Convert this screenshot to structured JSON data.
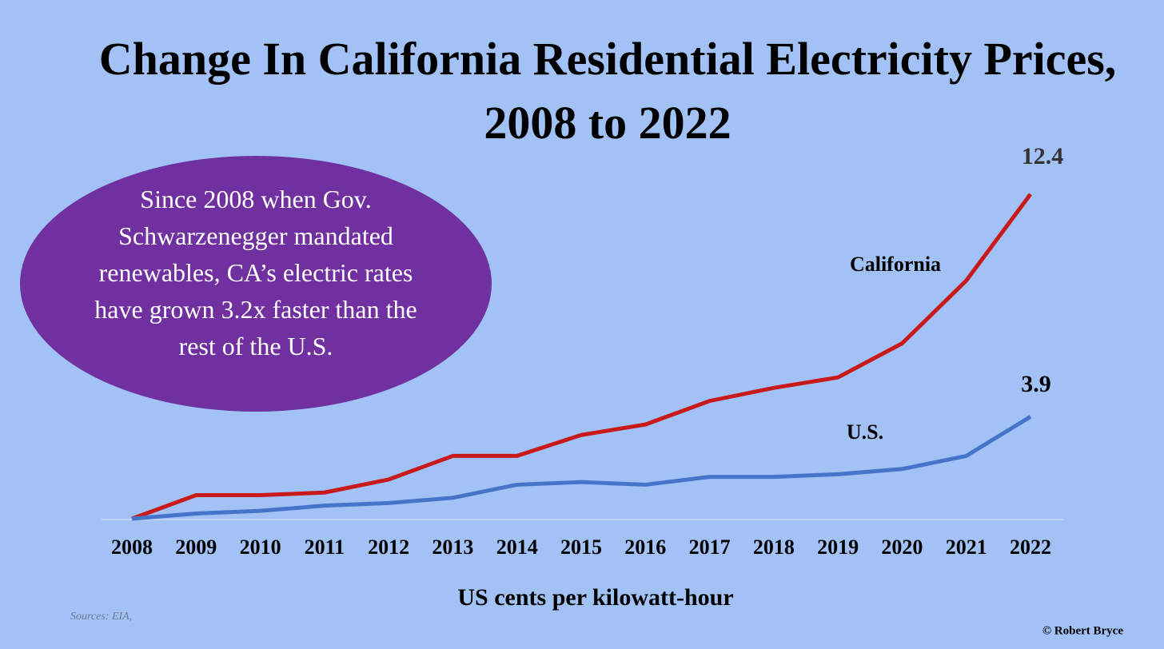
{
  "chart_data": {
    "type": "line",
    "title": "Change In California Residential Electricity Prices, 2008 to 2022",
    "annotation": "Since 2008 when Gov. Schwarzenegger mandated renewables, CA’s electric rates have grown 3.2x faster than the rest of the U.S.",
    "x_label": "US cents per kilowatt-hour",
    "source": "Sources: EIA,",
    "credit": "© Robert Bryce",
    "categories": [
      "2008",
      "2009",
      "2010",
      "2011",
      "2012",
      "2013",
      "2014",
      "2015",
      "2016",
      "2017",
      "2018",
      "2019",
      "2020",
      "2021",
      "2022"
    ],
    "series": [
      {
        "name": "California",
        "color": "#c8191b",
        "values": [
          0,
          0.9,
          0.9,
          1.0,
          1.5,
          2.4,
          2.4,
          3.2,
          3.6,
          4.5,
          5.0,
          5.4,
          6.7,
          9.1,
          12.4
        ]
      },
      {
        "name": "U.S.",
        "color": "#4674c8",
        "values": [
          0,
          0.2,
          0.3,
          0.5,
          0.6,
          0.8,
          1.3,
          1.4,
          1.3,
          1.6,
          1.6,
          1.7,
          1.9,
          2.4,
          3.9
        ]
      }
    ],
    "ylim": [
      0,
      12.4
    ]
  }
}
